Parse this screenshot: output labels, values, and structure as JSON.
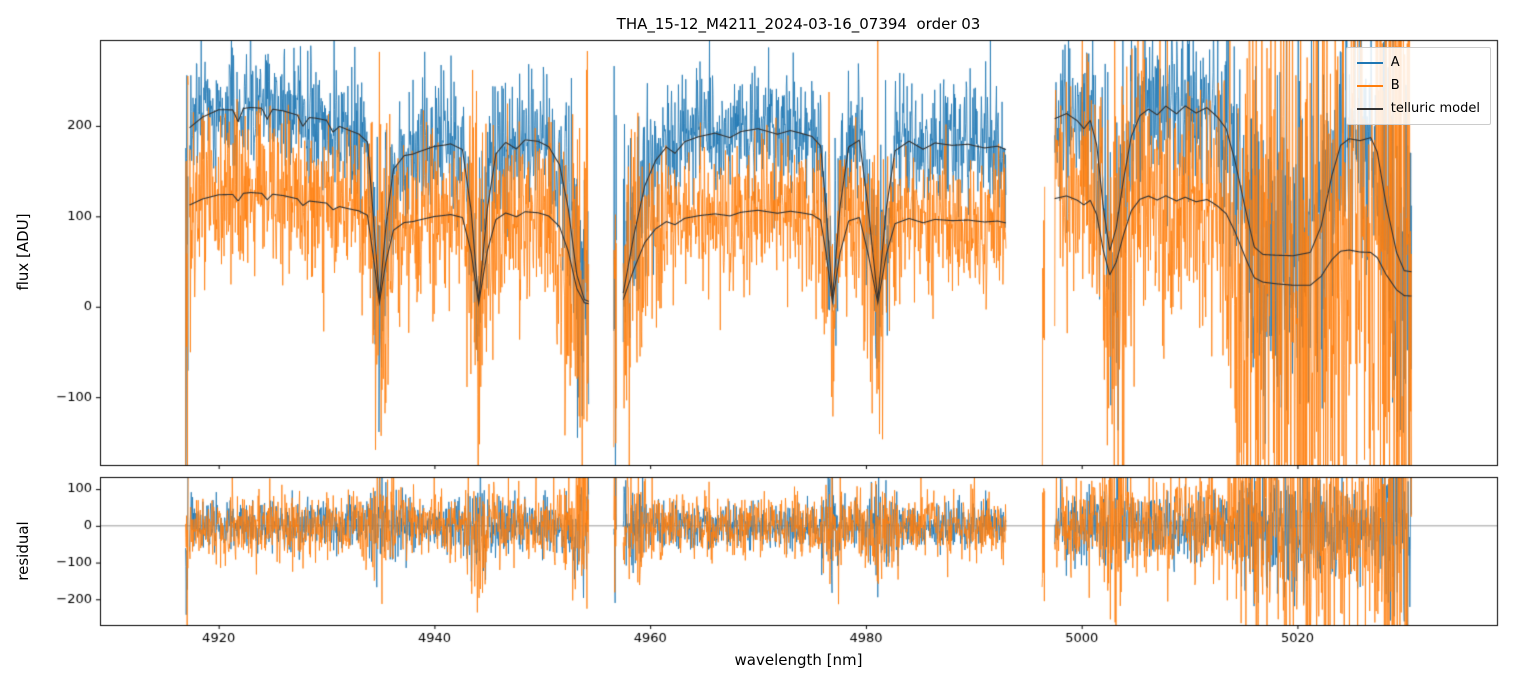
{
  "chart_data": {
    "type": "line",
    "title": "THA_15-12_M4211_2024-03-16_07394  order 03",
    "xlabel": "wavelength [nm]",
    "xlim": [
      4909.0,
      5038.5
    ],
    "xticks": [
      4920,
      4940,
      4960,
      4980,
      5000,
      5020
    ],
    "panels": [
      {
        "name": "flux",
        "ylabel": "flux [ADU]",
        "ylim": [
          -175,
          295
        ],
        "yticks": [
          -100,
          0,
          100,
          200
        ],
        "zero_line": false
      },
      {
        "name": "residual",
        "ylabel": "residual",
        "ylim": [
          -270,
          133
        ],
        "yticks": [
          -200,
          -100,
          0,
          100
        ],
        "zero_line": true
      }
    ],
    "legend": [
      {
        "label": "A",
        "color": "#1f77b4"
      },
      {
        "label": "B",
        "color": "#ff7f0e"
      },
      {
        "label": "telluric model",
        "color": "#333333"
      }
    ],
    "colors": {
      "A": "#1f77b4",
      "B": "#ff7f0e",
      "model": "#333333",
      "zero_line": "#808080",
      "spine": "#000000"
    },
    "grid": false,
    "legend_position": "upper right",
    "seed": 42,
    "sample_step_nm": 0.04,
    "segments": [
      {
        "x0": 4917.3,
        "x1": 4954.3
      },
      {
        "x0": 4957.5,
        "x1": 4993.0
      },
      {
        "x0": 4997.5,
        "x1": 5030.6
      }
    ],
    "artifact_spikes": [
      {
        "x": 4917.05,
        "half_width": 0.12,
        "center": 40,
        "sigma": 150,
        "series": [
          "A",
          "B"
        ]
      },
      {
        "x": 4956.75,
        "half_width": 0.12,
        "center": 30,
        "sigma": 160,
        "series": [
          "A",
          "B"
        ]
      },
      {
        "x": 4996.45,
        "half_width": 0.12,
        "center": 0,
        "sigma": 150,
        "series": [
          "B"
        ]
      }
    ],
    "telluric_transmission": [
      [
        4917.3,
        0.9
      ],
      [
        4918.5,
        0.94
      ],
      [
        4920,
        0.96
      ],
      [
        4921.3,
        0.95
      ],
      [
        4921.8,
        0.89
      ],
      [
        4922.3,
        0.95
      ],
      [
        4924,
        0.95
      ],
      [
        4924.5,
        0.9
      ],
      [
        4925,
        0.95
      ],
      [
        4927.3,
        0.94
      ],
      [
        4927.8,
        0.89
      ],
      [
        4928.4,
        0.94
      ],
      [
        4930,
        0.95
      ],
      [
        4930.6,
        0.9
      ],
      [
        4931.2,
        0.94
      ],
      [
        4933,
        0.93
      ],
      [
        4933.8,
        0.9
      ],
      [
        4934.4,
        0.45
      ],
      [
        4934.9,
        0.04
      ],
      [
        4935.5,
        0.45
      ],
      [
        4936.2,
        0.78
      ],
      [
        4937.2,
        0.87
      ],
      [
        4938.5,
        0.9
      ],
      [
        4940,
        0.93
      ],
      [
        4941.5,
        0.94
      ],
      [
        4942.6,
        0.9
      ],
      [
        4943.4,
        0.55
      ],
      [
        4944.1,
        0.03
      ],
      [
        4944.9,
        0.55
      ],
      [
        4945.7,
        0.86
      ],
      [
        4946.6,
        0.92
      ],
      [
        4947.6,
        0.88
      ],
      [
        4948.4,
        0.93
      ],
      [
        4949.6,
        0.92
      ],
      [
        4950.6,
        0.89
      ],
      [
        4951.6,
        0.79
      ],
      [
        4952.4,
        0.55
      ],
      [
        4953.2,
        0.18
      ],
      [
        4953.9,
        0.04
      ],
      [
        4954.3,
        0.03
      ],
      [
        4957.5,
        0.08
      ],
      [
        4958.5,
        0.42
      ],
      [
        4959.5,
        0.7
      ],
      [
        4960.5,
        0.84
      ],
      [
        4961.5,
        0.91
      ],
      [
        4962.3,
        0.87
      ],
      [
        4963.2,
        0.93
      ],
      [
        4964.5,
        0.95
      ],
      [
        4966,
        0.96
      ],
      [
        4967.4,
        0.93
      ],
      [
        4968.4,
        0.96
      ],
      [
        4970,
        0.97
      ],
      [
        4971.8,
        0.94
      ],
      [
        4973,
        0.96
      ],
      [
        4975,
        0.93
      ],
      [
        4975.8,
        0.88
      ],
      [
        4976.3,
        0.55
      ],
      [
        4976.9,
        0.05
      ],
      [
        4977.6,
        0.55
      ],
      [
        4978.4,
        0.88
      ],
      [
        4979.4,
        0.92
      ],
      [
        4980.2,
        0.55
      ],
      [
        4981.1,
        0.04
      ],
      [
        4981.9,
        0.55
      ],
      [
        4982.7,
        0.87
      ],
      [
        4984,
        0.93
      ],
      [
        4985.3,
        0.89
      ],
      [
        4986.4,
        0.93
      ],
      [
        4988,
        0.92
      ],
      [
        4989.5,
        0.93
      ],
      [
        4991,
        0.91
      ],
      [
        4992.2,
        0.92
      ],
      [
        4993,
        0.9
      ],
      [
        4997.5,
        0.92
      ],
      [
        4998.6,
        0.94
      ],
      [
        4999.6,
        0.9
      ],
      [
        5000.2,
        0.86
      ],
      [
        5000.8,
        0.9
      ],
      [
        5001.4,
        0.78
      ],
      [
        5002,
        0.48
      ],
      [
        5002.6,
        0.27
      ],
      [
        5003.2,
        0.38
      ],
      [
        5003.9,
        0.62
      ],
      [
        5004.6,
        0.82
      ],
      [
        5005.4,
        0.92
      ],
      [
        5006.2,
        0.95
      ],
      [
        5007,
        0.92
      ],
      [
        5007.8,
        0.96
      ],
      [
        5008.8,
        0.92
      ],
      [
        5009.6,
        0.96
      ],
      [
        5010.6,
        0.93
      ],
      [
        5011.6,
        0.96
      ],
      [
        5012.6,
        0.92
      ],
      [
        5013.4,
        0.87
      ],
      [
        5014.2,
        0.72
      ],
      [
        5015.2,
        0.48
      ],
      [
        5016,
        0.3
      ],
      [
        5016.8,
        0.265
      ],
      [
        5018,
        0.265
      ],
      [
        5019.6,
        0.265
      ],
      [
        5021.2,
        0.285
      ],
      [
        5022.2,
        0.42
      ],
      [
        5023.2,
        0.68
      ],
      [
        5024,
        0.83
      ],
      [
        5024.8,
        0.86
      ],
      [
        5025.8,
        0.845
      ],
      [
        5026.8,
        0.855
      ],
      [
        5027.4,
        0.78
      ],
      [
        5028.2,
        0.52
      ],
      [
        5029.2,
        0.27
      ],
      [
        5029.9,
        0.18
      ],
      [
        5031,
        0.17
      ]
    ],
    "continuum_A": [
      [
        4917.3,
        220
      ],
      [
        4920,
        227
      ],
      [
        4923,
        232
      ],
      [
        4926,
        229
      ],
      [
        4929,
        221
      ],
      [
        4932,
        209
      ],
      [
        4935,
        198
      ],
      [
        4938,
        190
      ],
      [
        4941,
        191
      ],
      [
        4944,
        195
      ],
      [
        4947,
        198
      ],
      [
        4950,
        199
      ],
      [
        4954.3,
        198
      ],
      [
        4957.5,
        188
      ],
      [
        4960,
        192
      ],
      [
        4963,
        196
      ],
      [
        4966,
        200
      ],
      [
        4970,
        203
      ],
      [
        4974,
        203
      ],
      [
        4978,
        201
      ],
      [
        4982,
        199
      ],
      [
        4986,
        195
      ],
      [
        4990,
        193
      ],
      [
        4993,
        193
      ],
      [
        4997.5,
        226
      ],
      [
        5000,
        229
      ],
      [
        5003,
        229
      ],
      [
        5006,
        230
      ],
      [
        5009,
        232
      ],
      [
        5012,
        229
      ],
      [
        5015,
        223
      ],
      [
        5018,
        215
      ],
      [
        5021,
        211
      ],
      [
        5024,
        215
      ],
      [
        5027,
        219
      ],
      [
        5031,
        223
      ]
    ],
    "continuum_B": [
      [
        4917.3,
        125
      ],
      [
        4920,
        129
      ],
      [
        4923,
        133
      ],
      [
        4926,
        130
      ],
      [
        4929,
        123
      ],
      [
        4932,
        116
      ],
      [
        4935,
        110
      ],
      [
        4938,
        106
      ],
      [
        4941,
        108
      ],
      [
        4944,
        111
      ],
      [
        4947,
        113
      ],
      [
        4950,
        113
      ],
      [
        4954.3,
        111
      ],
      [
        4957.5,
        99
      ],
      [
        4960,
        102
      ],
      [
        4963,
        105
      ],
      [
        4966,
        107
      ],
      [
        4970,
        110
      ],
      [
        4974,
        110
      ],
      [
        4978,
        108
      ],
      [
        4982,
        106
      ],
      [
        4986,
        104
      ],
      [
        4990,
        103
      ],
      [
        4993,
        103
      ],
      [
        4997.5,
        130
      ],
      [
        5000,
        131
      ],
      [
        5003,
        130
      ],
      [
        5006,
        129
      ],
      [
        5009,
        127
      ],
      [
        5012,
        123
      ],
      [
        5015,
        113
      ],
      [
        5018,
        96
      ],
      [
        5021,
        84
      ],
      [
        5024,
        74
      ],
      [
        5027,
        70
      ],
      [
        5031,
        68
      ]
    ],
    "noise_sigma_A": [
      [
        4917.3,
        33
      ],
      [
        4954.3,
        32
      ],
      [
        4957.5,
        31
      ],
      [
        4993,
        31
      ],
      [
        4997.5,
        40
      ],
      [
        5012,
        44
      ],
      [
        5020,
        50
      ],
      [
        5031,
        60
      ]
    ],
    "noise_sigma_B": [
      [
        4917.3,
        41
      ],
      [
        4954.3,
        40
      ],
      [
        4957.5,
        36
      ],
      [
        4993,
        36
      ],
      [
        4997.5,
        50
      ],
      [
        5012,
        70
      ],
      [
        5020,
        100
      ],
      [
        5031,
        145
      ]
    ],
    "noise_absorption_boost": {
      "A": 1.5,
      "B": 2.2
    }
  }
}
